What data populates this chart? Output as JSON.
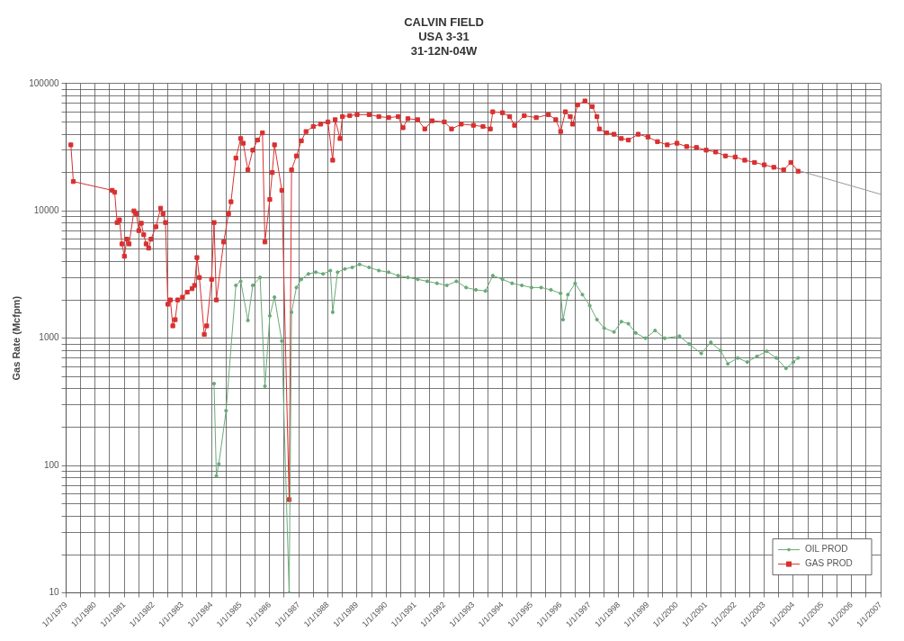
{
  "chart_data": {
    "type": "line",
    "title": "CALVIN FIELD\nUSA 3-31\n31-12N-04W",
    "ylabel": "Gas Rate (Mcfpm)",
    "log": "y",
    "grid": true,
    "legend": "bottom right",
    "line_style": "solid",
    "xlim": [
      "1979-01-01",
      "2007-01-01"
    ],
    "ylim": [
      10,
      100000
    ],
    "yticks": [
      10,
      {
        "value": 20,
        "label": null
      },
      {
        "value": 30,
        "label": null
      },
      {
        "value": 40,
        "label": null
      },
      {
        "value": 50,
        "label": null
      },
      {
        "value": 60,
        "label": null
      },
      {
        "value": 70,
        "label": null
      },
      {
        "value": 80,
        "label": null
      },
      {
        "value": 90,
        "label": null
      },
      100,
      {
        "value": 200,
        "label": null
      },
      {
        "value": 300,
        "label": null
      },
      {
        "value": 400,
        "label": null
      },
      {
        "value": 500,
        "label": null
      },
      {
        "value": 600,
        "label": null
      },
      {
        "value": 700,
        "label": null
      },
      {
        "value": 800,
        "label": null
      },
      {
        "value": 900,
        "label": null
      },
      1000,
      {
        "value": 2000,
        "label": null
      },
      {
        "value": 3000,
        "label": null
      },
      {
        "value": 4000,
        "label": null
      },
      {
        "value": 5000,
        "label": null
      },
      {
        "value": 6000,
        "label": null
      },
      {
        "value": 7000,
        "label": null
      },
      {
        "value": 8000,
        "label": null
      },
      {
        "value": 9000,
        "label": null
      },
      10000,
      {
        "value": 20000,
        "label": null
      },
      {
        "value": 30000,
        "label": null
      },
      {
        "value": 40000,
        "label": null
      },
      {
        "value": 50000,
        "label": null
      },
      {
        "value": 60000,
        "label": null
      },
      {
        "value": 70000,
        "label": null
      },
      {
        "value": 80000,
        "label": null
      },
      {
        "value": 90000,
        "label": null
      },
      100000
    ],
    "xticks": [
      {
        "value": "1979-01-01",
        "label": "1/1/1979"
      },
      {
        "value": "1979-07-01",
        "label": null
      },
      {
        "value": "1980-01-01",
        "label": "1/1/1980"
      },
      {
        "value": "1980-07-01",
        "label": null
      },
      {
        "value": "1981-01-01",
        "label": "1/1/1981"
      },
      {
        "value": "1981-07-01",
        "label": null
      },
      {
        "value": "1982-01-01",
        "label": "1/1/1982"
      },
      {
        "value": "1982-07-01",
        "label": null
      },
      {
        "value": "1983-01-01",
        "label": "1/1/1983"
      },
      {
        "value": "1983-07-01",
        "label": null
      },
      {
        "value": "1984-01-01",
        "label": "1/1/1984"
      },
      {
        "value": "1984-07-01",
        "label": null
      },
      {
        "value": "1985-01-01",
        "label": "1/1/1985"
      },
      {
        "value": "1985-07-01",
        "label": null
      },
      {
        "value": "1986-01-01",
        "label": "1/1/1986"
      },
      {
        "value": "1986-07-01",
        "label": null
      },
      {
        "value": "1987-01-01",
        "label": "1/1/1987"
      },
      {
        "value": "1987-07-01",
        "label": null
      },
      {
        "value": "1988-01-01",
        "label": "1/1/1988"
      },
      {
        "value": "1988-07-01",
        "label": null
      },
      {
        "value": "1989-01-01",
        "label": "1/1/1989"
      },
      {
        "value": "1989-07-01",
        "label": null
      },
      {
        "value": "1990-01-01",
        "label": "1/1/1990"
      },
      {
        "value": "1990-07-01",
        "label": null
      },
      {
        "value": "1991-01-01",
        "label": "1/1/1991"
      },
      {
        "value": "1991-07-01",
        "label": null
      },
      {
        "value": "1992-01-01",
        "label": "1/1/1992"
      },
      {
        "value": "1992-07-01",
        "label": null
      },
      {
        "value": "1993-01-01",
        "label": "1/1/1993"
      },
      {
        "value": "1993-07-01",
        "label": null
      },
      {
        "value": "1994-01-01",
        "label": "1/1/1994"
      },
      {
        "value": "1994-07-01",
        "label": null
      },
      {
        "value": "1995-01-01",
        "label": "1/1/1995"
      },
      {
        "value": "1995-07-01",
        "label": null
      },
      {
        "value": "1996-01-01",
        "label": "1/1/1996"
      },
      {
        "value": "1996-07-01",
        "label": null
      },
      {
        "value": "1997-01-01",
        "label": "1/1/1997"
      },
      {
        "value": "1997-07-01",
        "label": null
      },
      {
        "value": "1998-01-01",
        "label": "1/1/1998"
      },
      {
        "value": "1998-07-01",
        "label": null
      },
      {
        "value": "1999-01-01",
        "label": "1/1/1999"
      },
      {
        "value": "1999-07-01",
        "label": null
      },
      {
        "value": "2000-01-01",
        "label": "1/1/2000"
      },
      {
        "value": "2000-07-01",
        "label": null
      },
      {
        "value": "2001-01-01",
        "label": "1/1/2001"
      },
      {
        "value": "2001-07-01",
        "label": null
      },
      {
        "value": "2002-01-01",
        "label": "1/1/2002"
      },
      {
        "value": "2002-07-01",
        "label": null
      },
      {
        "value": "2003-01-01",
        "label": "1/1/2003"
      },
      {
        "value": "2003-07-01",
        "label": null
      },
      {
        "value": "2004-01-01",
        "label": "1/1/2004"
      },
      {
        "value": "2004-07-01",
        "label": null
      },
      {
        "value": "2005-01-01",
        "label": "1/1/2005"
      },
      {
        "value": "2005-07-01",
        "label": null
      },
      {
        "value": "2006-01-01",
        "label": "1/1/2006"
      },
      {
        "value": "2006-07-01",
        "label": null
      },
      {
        "value": "2007-01-01",
        "label": "1/1/2007"
      }
    ],
    "series": [
      {
        "name": "OIL PROD",
        "color": "#6aaa78",
        "marker": "circle",
        "x": [
          "1984-02",
          "1984-03",
          "1984-04",
          "1984-07",
          "1984-11",
          "1985-01",
          "1985-04",
          "1985-06",
          "1985-09",
          "1985-11",
          "1986-01",
          "1986-03",
          "1986-06",
          "1986-09",
          "1986-10",
          "1986-12",
          "1987-02",
          "1987-05",
          "1987-08",
          "1987-11",
          "1988-02",
          "1988-03",
          "1988-05",
          "1988-08",
          "1988-11",
          "1989-02",
          "1989-06",
          "1989-10",
          "1990-02",
          "1990-06",
          "1990-10",
          "1991-02",
          "1991-06",
          "1991-10",
          "1992-02",
          "1992-06",
          "1992-10",
          "1993-02",
          "1993-06",
          "1993-09",
          "1994-01",
          "1994-05",
          "1994-09",
          "1995-01",
          "1995-05",
          "1995-09",
          "1996-01",
          "1996-02",
          "1996-04",
          "1996-07",
          "1996-10",
          "1997-01",
          "1997-04",
          "1997-07",
          "1997-11",
          "1998-02",
          "1998-05",
          "1998-08",
          "1998-12",
          "1999-04",
          "1999-08",
          "2000-02",
          "2000-06",
          "2000-11",
          "2001-03",
          "2001-07",
          "2001-10",
          "2002-02",
          "2002-06",
          "2002-10",
          "2003-02",
          "2003-06",
          "2003-10",
          "2004-01",
          "2004-03"
        ],
        "values": [
          440,
          83,
          103,
          270,
          2600,
          2800,
          1380,
          2600,
          3000,
          420,
          1500,
          2100,
          950,
          10,
          1600,
          2500,
          2900,
          3200,
          3300,
          3200,
          3400,
          1600,
          3300,
          3500,
          3600,
          3800,
          3600,
          3400,
          3300,
          3100,
          3000,
          2900,
          2800,
          2700,
          2600,
          2800,
          2500,
          2400,
          2350,
          3100,
          2900,
          2700,
          2600,
          2500,
          2500,
          2400,
          2250,
          1400,
          2200,
          2700,
          2200,
          1800,
          1400,
          1200,
          1120,
          1350,
          1300,
          1100,
          1000,
          1150,
          1000,
          1040,
          900,
          760,
          930,
          800,
          630,
          700,
          650,
          720,
          790,
          700,
          580,
          650,
          700
        ]
      },
      {
        "name": "GAS PROD",
        "color": "#d93030",
        "marker": "square",
        "x": [
          "1979-03",
          "1979-04",
          "1980-08",
          "1980-09",
          "1980-10",
          "1980-11",
          "1980-12",
          "1981-01",
          "1981-02",
          "1981-03",
          "1981-05",
          "1981-06",
          "1981-07",
          "1981-08",
          "1981-09",
          "1981-10",
          "1981-11",
          "1981-12",
          "1982-02",
          "1982-04",
          "1982-05",
          "1982-06",
          "1982-07",
          "1982-08",
          "1982-09",
          "1982-10",
          "1982-11",
          "1983-01",
          "1983-03",
          "1983-05",
          "1983-06",
          "1983-07",
          "1983-08",
          "1983-10",
          "1983-11",
          "1984-01",
          "1984-02",
          "1984-03",
          "1984-06",
          "1984-08",
          "1984-09",
          "1984-11",
          "1985-01",
          "1985-02",
          "1985-04",
          "1985-06",
          "1985-08",
          "1985-10",
          "1985-11",
          "1986-01",
          "1986-02",
          "1986-03",
          "1986-06",
          "1986-09",
          "1986-10",
          "1986-12",
          "1987-02",
          "1987-04",
          "1987-07",
          "1987-10",
          "1988-01",
          "1988-03",
          "1988-04",
          "1988-06",
          "1988-07",
          "1988-10",
          "1989-01",
          "1989-06",
          "1989-10",
          "1990-02",
          "1990-06",
          "1990-08",
          "1990-10",
          "1991-02",
          "1991-05",
          "1991-08",
          "1992-01",
          "1992-04",
          "1992-08",
          "1993-01",
          "1993-05",
          "1993-08",
          "1993-09",
          "1994-01",
          "1994-04",
          "1994-06",
          "1994-10",
          "1995-03",
          "1995-08",
          "1995-11",
          "1996-01",
          "1996-03",
          "1996-05",
          "1996-06",
          "1996-08",
          "1996-11",
          "1997-02",
          "1997-04",
          "1997-05",
          "1997-08",
          "1997-11",
          "1998-02",
          "1998-05",
          "1998-09",
          "1999-01",
          "1999-05",
          "1999-09",
          "2000-01",
          "2000-05",
          "2000-09",
          "2001-01",
          "2001-05",
          "2001-09",
          "2002-01",
          "2002-05",
          "2002-09",
          "2003-01",
          "2003-05",
          "2003-09",
          "2003-12",
          "2004-03"
        ],
        "values": [
          33000,
          17000,
          14500,
          14000,
          8100,
          8500,
          5500,
          4400,
          6000,
          5500,
          10000,
          9500,
          7000,
          8000,
          6500,
          5500,
          5100,
          6000,
          7500,
          10500,
          9500,
          8100,
          1850,
          2000,
          1250,
          1400,
          2000,
          2100,
          2300,
          2450,
          2600,
          4300,
          3000,
          1070,
          1250,
          2900,
          8100,
          2000,
          5700,
          9500,
          11800,
          26000,
          37000,
          34000,
          21000,
          30000,
          36000,
          41000,
          5700,
          12300,
          20000,
          33000,
          14500,
          54,
          21000,
          27000,
          35500,
          42000,
          46000,
          48000,
          50000,
          25000,
          52000,
          37000,
          55000,
          56000,
          57000,
          57000,
          55000,
          54000,
          55000,
          45000,
          53000,
          52000,
          44000,
          51000,
          50000,
          44000,
          48000,
          47000,
          46000,
          44000,
          60000,
          59000,
          55000,
          47000,
          56000,
          54000,
          57000,
          52000,
          42000,
          60000,
          55000,
          48000,
          68000,
          73000,
          66000,
          55000,
          44000,
          41000,
          40000,
          37000,
          36000,
          40000,
          38000,
          35000,
          33000,
          34000,
          32000,
          31500,
          30000,
          29000,
          27000,
          26500,
          25000,
          24000,
          23000,
          22000,
          21000,
          24000,
          20500
        ]
      },
      {
        "color": "#999999",
        "marker": "none",
        "x": [
          "2004-04",
          "2007-01"
        ],
        "values": [
          20500,
          13500
        ]
      }
    ]
  }
}
